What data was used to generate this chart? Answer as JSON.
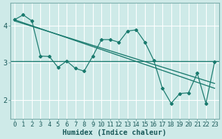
{
  "xlabel": "Humidex (Indice chaleur)",
  "ylabel": "",
  "background_color": "#ceeae8",
  "grid_color": "#ffffff",
  "line_color": "#1a7a6e",
  "x_values": [
    0,
    1,
    2,
    3,
    4,
    5,
    6,
    7,
    8,
    9,
    10,
    11,
    12,
    13,
    14,
    15,
    16,
    17,
    18,
    19,
    20,
    21,
    22,
    23
  ],
  "y_main": [
    4.15,
    4.28,
    4.12,
    3.18,
    3.17,
    2.88,
    3.05,
    2.85,
    2.78,
    3.18,
    3.62,
    3.62,
    3.55,
    3.85,
    3.88,
    3.55,
    3.07,
    2.32,
    1.92,
    2.18,
    2.2,
    2.72,
    1.92,
    3.02
  ],
  "trend1_x": [
    0,
    23
  ],
  "trend1_y": [
    4.15,
    2.32
  ],
  "trend2_x": [
    0,
    23
  ],
  "trend2_y": [
    4.12,
    2.45
  ],
  "hline_y": 3.05,
  "ylim": [
    1.5,
    4.6
  ],
  "xlim": [
    -0.5,
    23.5
  ],
  "yticks": [
    2,
    3,
    4
  ],
  "xticks": [
    0,
    1,
    2,
    3,
    4,
    5,
    6,
    7,
    8,
    9,
    10,
    11,
    12,
    13,
    14,
    15,
    16,
    17,
    18,
    19,
    20,
    21,
    22,
    23
  ],
  "tick_fontsize": 6.5,
  "label_fontsize": 7.5
}
